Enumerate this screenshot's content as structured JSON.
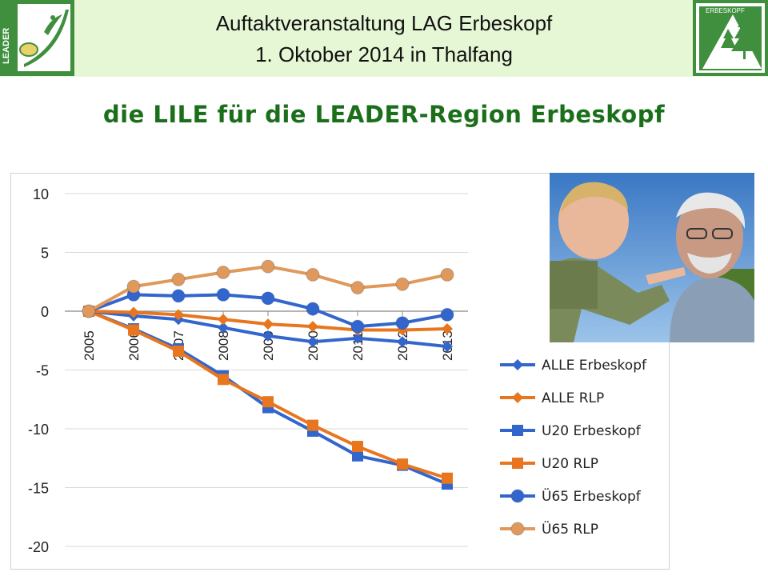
{
  "header": {
    "title_line1": "Auftaktveranstaltung LAG Erbeskopf",
    "title_line2": "1. Oktober 2014 in Thalfang",
    "left_logo_text": "LEADER",
    "right_logo_text": "ERBESKOPF"
  },
  "slide_title": "die LILE für die LEADER-Region Erbeskopf",
  "colors": {
    "header_band": "#e6f7d6",
    "title_green": "#1b6f1b",
    "logo_green": "#3f8f3f",
    "series_blue": "#3366cc",
    "series_orange": "#e8761e",
    "series_light_orange": "#e0995a"
  },
  "chart_data": {
    "type": "line",
    "title": "",
    "xlabel": "",
    "ylabel": "",
    "ylim": [
      -20,
      10
    ],
    "yticks": [
      10,
      5,
      0,
      -5,
      -10,
      -15,
      -20
    ],
    "grid": true,
    "legend_position": "right",
    "x": [
      "2005",
      "2006",
      "2007",
      "2008",
      "2009",
      "2010",
      "2011",
      "2012",
      "2013"
    ],
    "series": [
      {
        "name": "ALLE Erbeskopf",
        "marker": "diamond",
        "color": "#3366cc",
        "values": [
          0,
          -0.4,
          -0.7,
          -1.4,
          -2.1,
          -2.6,
          -2.3,
          -2.6,
          -3.0
        ]
      },
      {
        "name": "ALLE RLP",
        "marker": "diamond",
        "color": "#e8761e",
        "values": [
          0,
          -0.1,
          -0.3,
          -0.7,
          -1.1,
          -1.3,
          -1.6,
          -1.6,
          -1.5
        ]
      },
      {
        "name": "U20 Erbeskopf",
        "marker": "square",
        "color": "#3366cc",
        "values": [
          0,
          -1.5,
          -3.2,
          -5.5,
          -8.2,
          -10.2,
          -12.3,
          -13.1,
          -14.7
        ]
      },
      {
        "name": "U20 RLP",
        "marker": "square",
        "color": "#e8761e",
        "values": [
          0,
          -1.6,
          -3.4,
          -5.8,
          -7.7,
          -9.7,
          -11.5,
          -13.0,
          -14.2
        ]
      },
      {
        "name": "Ü65 Erbeskopf",
        "marker": "circle",
        "color": "#3366cc",
        "values": [
          0,
          1.4,
          1.3,
          1.4,
          1.1,
          0.2,
          -1.3,
          -1.0,
          -0.3
        ]
      },
      {
        "name": "Ü65 RLP",
        "marker": "circle",
        "color": "#e0995a",
        "values": [
          0,
          2.1,
          2.7,
          3.3,
          3.8,
          3.1,
          2.0,
          2.3,
          3.1
        ]
      }
    ]
  }
}
